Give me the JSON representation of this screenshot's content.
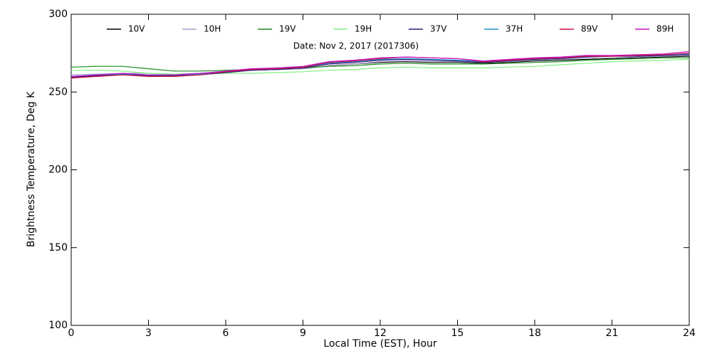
{
  "chart_data": {
    "type": "line",
    "title": "Date: Nov  2, 2017 (2017306)",
    "x_label": "Local Time (EST), Hour",
    "y_label": "Brightness Temperature, Deg K",
    "x": [
      0,
      1,
      2,
      3,
      4,
      5,
      6,
      7,
      8,
      9,
      10,
      11,
      12,
      13,
      14,
      15,
      16,
      17,
      18,
      19,
      20,
      21,
      22,
      23,
      24
    ],
    "xlim": [
      0,
      24
    ],
    "xticks": [
      0,
      3,
      6,
      9,
      12,
      15,
      18,
      21,
      24
    ],
    "ylim": [
      100,
      300
    ],
    "yticks": [
      100,
      150,
      200,
      250,
      300
    ],
    "series": [
      {
        "name": "10V",
        "color": "#000000",
        "values": [
          260,
          260.5,
          261,
          261,
          261,
          261.5,
          262.5,
          264,
          264.5,
          265,
          267,
          268,
          269,
          269.5,
          269,
          269,
          268.5,
          269,
          270,
          270.5,
          271,
          271.5,
          272,
          272.5,
          273
        ]
      },
      {
        "name": "10H",
        "color": "#a8a0c8",
        "values": [
          261,
          261.5,
          262,
          262,
          261.5,
          262,
          263,
          264,
          264.5,
          265,
          267,
          268,
          269.5,
          270,
          269.5,
          269.5,
          269,
          269.5,
          270.5,
          271,
          271.5,
          272,
          272.5,
          273,
          273.5
        ]
      },
      {
        "name": "19V",
        "color": "#1a8a1a",
        "values": [
          266,
          266.5,
          266.5,
          265,
          263.5,
          263.5,
          264,
          264.5,
          265,
          265.5,
          266.5,
          267,
          268,
          268.5,
          268,
          268,
          268,
          268.5,
          269,
          269.5,
          270.5,
          271,
          271.5,
          272,
          272
        ]
      },
      {
        "name": "19H",
        "color": "#80f080",
        "values": [
          264,
          264,
          263.5,
          262,
          261.5,
          261.5,
          262,
          262,
          262.5,
          263,
          264,
          264.5,
          265.5,
          266,
          265.5,
          265.5,
          265.5,
          266,
          266.5,
          267.5,
          268.5,
          269.5,
          270,
          270.5,
          271
        ]
      },
      {
        "name": "37V",
        "color": "#301878",
        "values": [
          259.5,
          260.5,
          261,
          260.5,
          260.5,
          261,
          262.5,
          264,
          264.5,
          265.5,
          268,
          269,
          270.5,
          271,
          270.5,
          270,
          269,
          270,
          271,
          271.5,
          272.5,
          273,
          273,
          273.5,
          274
        ]
      },
      {
        "name": "37H",
        "color": "#2090c8",
        "values": [
          260,
          261,
          261.5,
          261,
          261,
          261.5,
          263,
          264.5,
          265,
          266,
          268.5,
          269.5,
          271,
          271.5,
          271,
          270.5,
          269.5,
          270.5,
          271.5,
          272,
          273,
          273,
          273.5,
          274,
          274.5
        ]
      },
      {
        "name": "89V",
        "color": "#d01040",
        "values": [
          259,
          260,
          261,
          260,
          260,
          261,
          263,
          264.5,
          265,
          266,
          269,
          270,
          271.5,
          272.5,
          272,
          271.5,
          269.5,
          270.5,
          271.5,
          272,
          273,
          273,
          273.5,
          274,
          275
        ]
      },
      {
        "name": "89H",
        "color": "#c010c8",
        "values": [
          260,
          261,
          262,
          261,
          261,
          262,
          263.5,
          265,
          265.5,
          266.5,
          269.5,
          270.5,
          272,
          272.5,
          272,
          271.5,
          270,
          271,
          272,
          272.5,
          273.5,
          273.5,
          274,
          274.5,
          276
        ]
      }
    ]
  }
}
